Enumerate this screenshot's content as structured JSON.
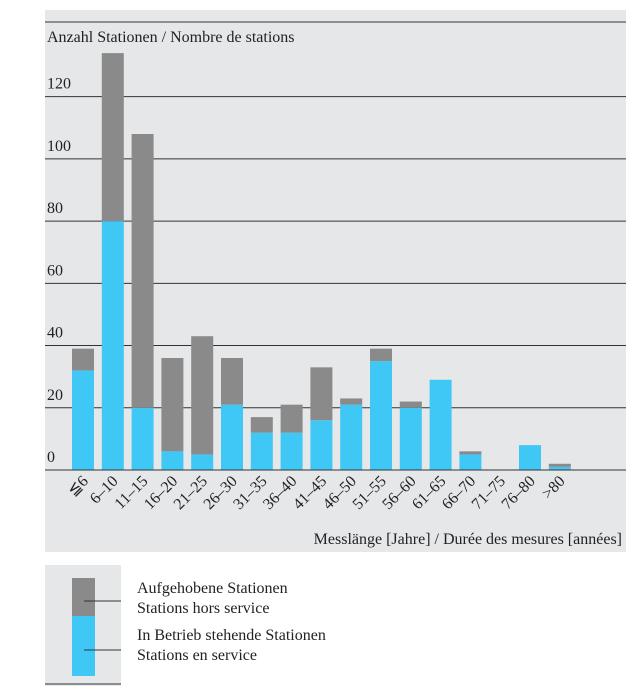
{
  "chart_data": {
    "type": "stacked_bar",
    "title": "Anzahl Stationen / Nombre de stations",
    "x_label": "Messlänge [Jahre] / Durée des mesures [années]",
    "categories": [
      "≦6",
      "6–10",
      "11–15",
      "16–20",
      "21–25",
      "26–30",
      "31–35",
      "36–40",
      "41–45",
      "46–50",
      "51–55",
      "56–60",
      "61–65",
      "66–70",
      "71–75",
      "76–80",
      ">80"
    ],
    "series": [
      {
        "name": "In Betrieb stehende Stationen",
        "name_fr": "Stations en service",
        "color": "#3fc8f5",
        "values": [
          32,
          80,
          20,
          6,
          5,
          21,
          12,
          12,
          16,
          21,
          35,
          20,
          29,
          5,
          0,
          8,
          1
        ]
      },
      {
        "name": "Aufgehobene Stationen",
        "name_fr": "Stations hors service",
        "color": "#8a8a8b",
        "values": [
          7,
          54,
          88,
          30,
          38,
          15,
          5,
          9,
          17,
          2,
          4,
          2,
          0,
          1,
          0,
          0,
          1
        ]
      }
    ],
    "ylim": [
      0,
      144
    ],
    "yticks": [
      0,
      20,
      40,
      60,
      80,
      100,
      120
    ],
    "grid": true
  }
}
